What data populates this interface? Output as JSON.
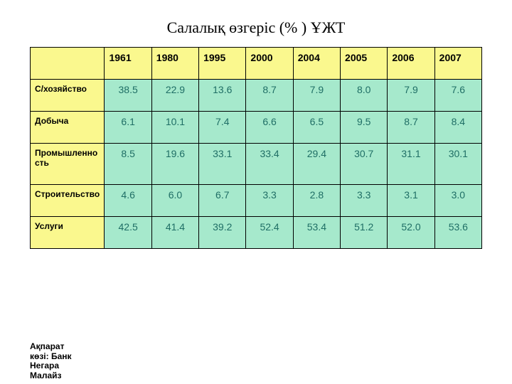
{
  "title": "Салалық өзгеріс (% ) ҰЖТ",
  "colors": {
    "header_bg": "#faf88e",
    "rowlabel_bg": "#faf88e",
    "cell_bg": "#a6e9cc",
    "cell_text": "#1f6e65",
    "border": "#000000",
    "title_text": "#000000"
  },
  "table": {
    "years": [
      "1961",
      "1980",
      "1995",
      "2000",
      "2004",
      "2005",
      "2006",
      "2007"
    ],
    "rows": [
      {
        "label": "С/хозяйство",
        "values": [
          "38.5",
          "22.9",
          "13.6",
          "8.7",
          "7.9",
          "8.0",
          "7.9",
          "7.6"
        ]
      },
      {
        "label": "Добыча",
        "values": [
          "6.1",
          "10.1",
          "7.4",
          "6.6",
          "6.5",
          "9.5",
          "8.7",
          "8.4"
        ]
      },
      {
        "label": "Промышленность",
        "values": [
          "8.5",
          "19.6",
          "33.1",
          "33.4",
          "29.4",
          "30.7",
          "31.1",
          "30.1"
        ]
      },
      {
        "label": "Строительство",
        "values": [
          "4.6",
          "6.0",
          "6.7",
          "3.3",
          "2.8",
          "3.3",
          "3.1",
          "3.0"
        ]
      },
      {
        "label": "Услуги",
        "values": [
          "42.5",
          "41.4",
          "39.2",
          "52.4",
          "53.4",
          "51.2",
          "52.0",
          "53.6"
        ]
      }
    ]
  },
  "footer": "Ақпарат көзі: Банк Негара Малайз"
}
